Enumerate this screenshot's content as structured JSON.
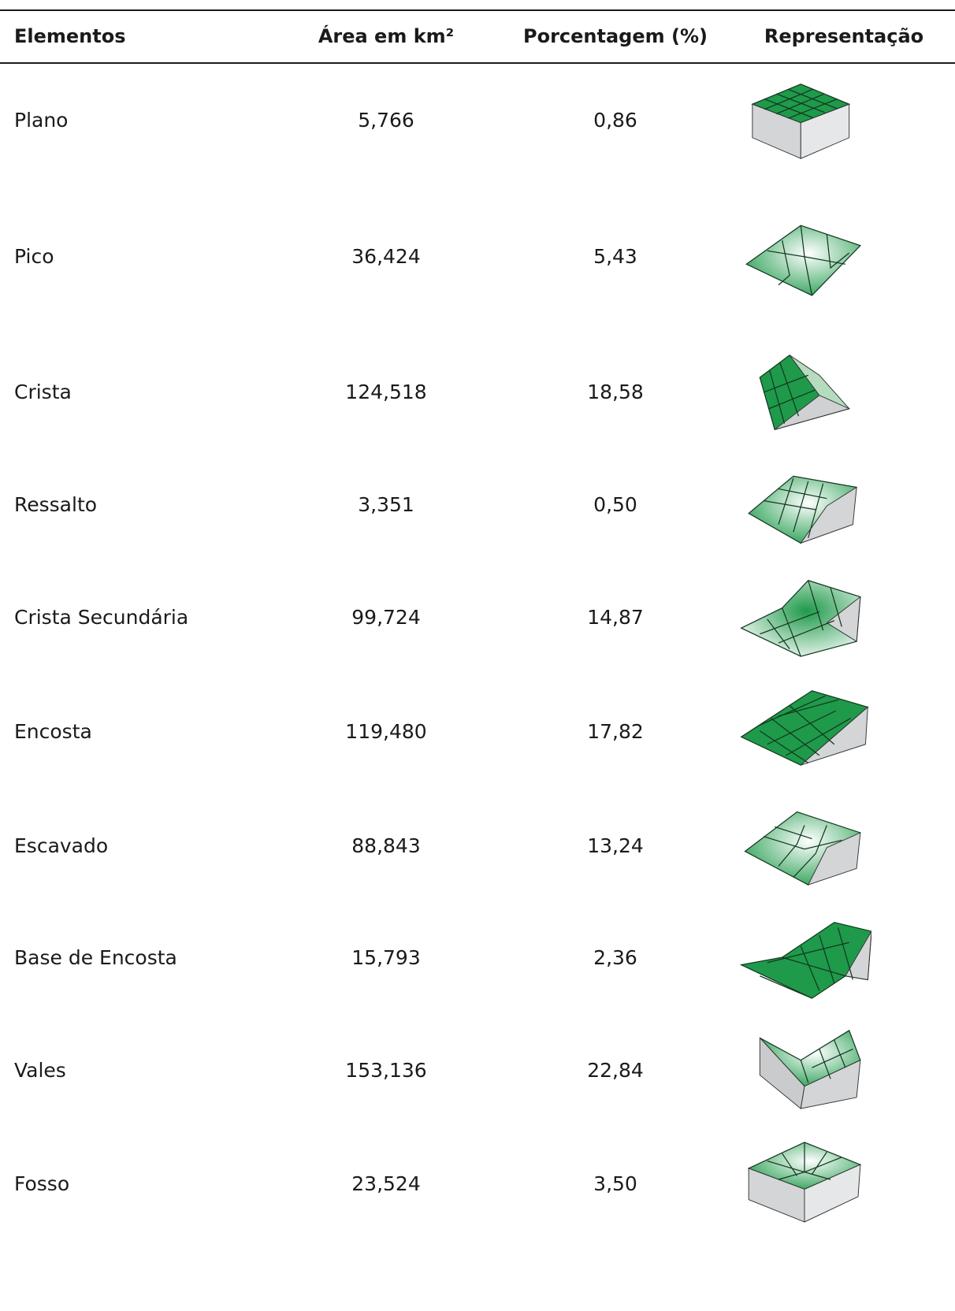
{
  "table": {
    "headers": {
      "elementos": "Elementos",
      "area": "Área em km²",
      "porcentagem": "Porcentagem (%)",
      "representacao": "Representação"
    },
    "rows": [
      {
        "elemento": "Plano",
        "area": "5,766",
        "porcentagem": "0,86",
        "icon": "flat-terrain-icon"
      },
      {
        "elemento": "Pico",
        "area": "36,424",
        "porcentagem": "5,43",
        "icon": "peak-terrain-icon"
      },
      {
        "elemento": "Crista",
        "area": "124,518",
        "porcentagem": "18,58",
        "icon": "ridge-terrain-icon"
      },
      {
        "elemento": "Ressalto",
        "area": "3,351",
        "porcentagem": "0,50",
        "icon": "shoulder-terrain-icon"
      },
      {
        "elemento": "Crista Secundária",
        "area": "99,724",
        "porcentagem": "14,87",
        "icon": "secondary-ridge-terrain-icon"
      },
      {
        "elemento": "Encosta",
        "area": "119,480",
        "porcentagem": "17,82",
        "icon": "slope-terrain-icon"
      },
      {
        "elemento": "Escavado",
        "area": "88,843",
        "porcentagem": "13,24",
        "icon": "hollow-terrain-icon"
      },
      {
        "elemento": "Base de Encosta",
        "area": "15,793",
        "porcentagem": "2,36",
        "icon": "footslope-terrain-icon"
      },
      {
        "elemento": "Vales",
        "area": "153,136",
        "porcentagem": "22,84",
        "icon": "valley-terrain-icon"
      },
      {
        "elemento": "Fosso",
        "area": "23,524",
        "porcentagem": "3,50",
        "icon": "pit-terrain-icon"
      }
    ]
  },
  "colors": {
    "terrain_green": "#1e9a4a",
    "terrain_light": "#e9f6ec",
    "block_side": "#d3d5d6",
    "rule": "#1a1a1a"
  }
}
